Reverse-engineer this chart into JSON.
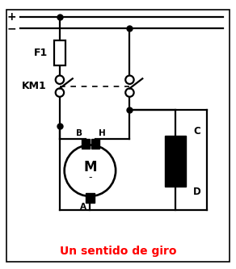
{
  "title": "Un sentido de giro",
  "title_color": "#ff0000",
  "title_fontsize": 10,
  "bg_color": "#ffffff",
  "line_color": "#000000",
  "border_color": "#000000",
  "plus_label": "+",
  "minus_label": "-",
  "f1_label": "F1",
  "km1_label": "KM1",
  "motor_label": "M",
  "motor_sub": "-",
  "b_label": "B",
  "h_label": "H",
  "a_label": "A",
  "c_label": "C",
  "d_label": "D",
  "fig_width": 2.92,
  "fig_height": 3.33,
  "dpi": 100
}
